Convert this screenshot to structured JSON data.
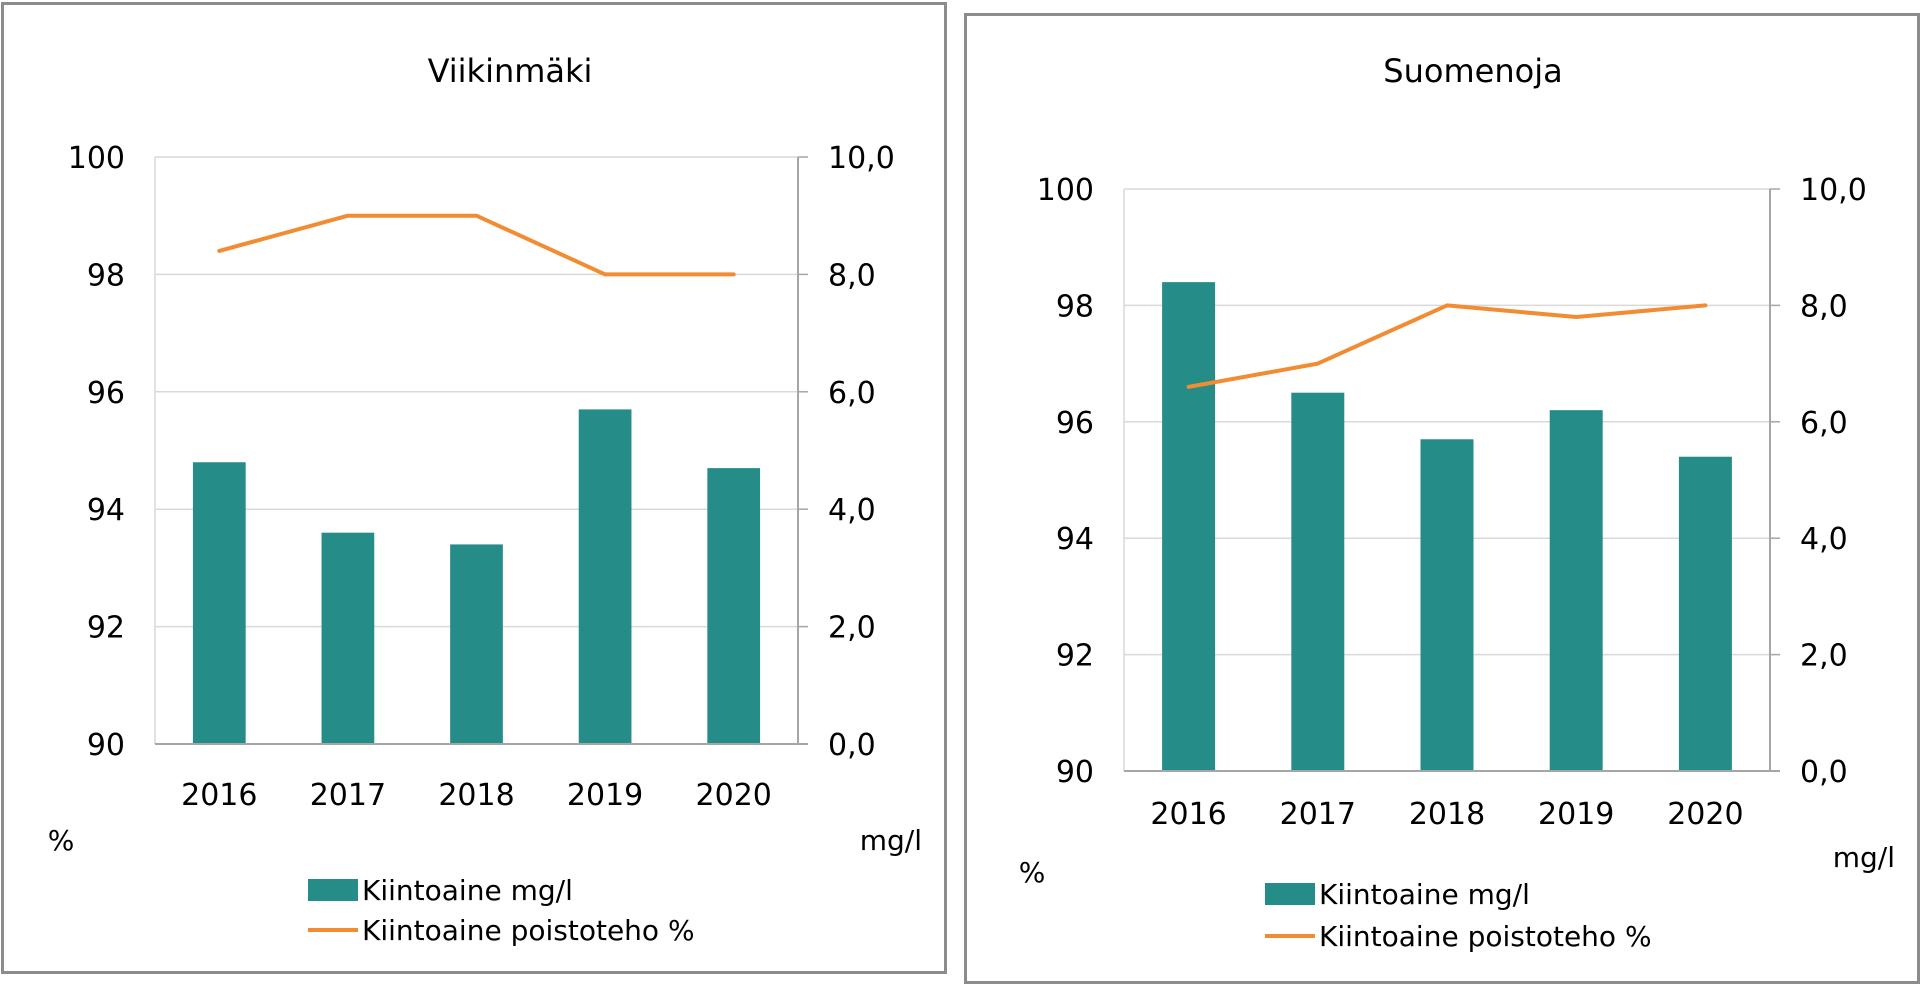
{
  "colors": {
    "bar": "#268C87",
    "line": "#F28C33",
    "grid": "#d9d9d9",
    "axis": "#a6a6a6",
    "frame": "#8c8c8c"
  },
  "chart_data": [
    {
      "type": "bar",
      "title": "Viikinmäki",
      "categories": [
        "2016",
        "2017",
        "2018",
        "2019",
        "2020"
      ],
      "series": [
        {
          "name": "Kiintoaine mg/l",
          "type": "bar",
          "axis": "right",
          "values": [
            4.8,
            3.6,
            3.4,
            5.7,
            4.7
          ]
        },
        {
          "name": "Kiintoaine poistoteho %",
          "type": "line",
          "axis": "left",
          "values": [
            98.4,
            99.0,
            99.0,
            98.0,
            98.0
          ]
        }
      ],
      "y_left": {
        "label": "%",
        "range": [
          90,
          100
        ],
        "ticks": [
          "90",
          "92",
          "94",
          "96",
          "98",
          "100"
        ]
      },
      "y_right": {
        "label": "mg/l",
        "range": [
          0,
          10
        ],
        "ticks": [
          "0,0",
          "2,0",
          "4,0",
          "6,0",
          "8,0",
          "10,0"
        ]
      },
      "grid": true,
      "legend": {
        "placement": "bottom",
        "entries": [
          "Kiintoaine mg/l",
          "Kiintoaine poistoteho %"
        ]
      }
    },
    {
      "type": "bar",
      "title": "Suomenoja",
      "categories": [
        "2016",
        "2017",
        "2018",
        "2019",
        "2020"
      ],
      "series": [
        {
          "name": "Kiintoaine mg/l",
          "type": "bar",
          "axis": "right",
          "values": [
            8.4,
            6.5,
            5.7,
            6.2,
            5.4
          ]
        },
        {
          "name": "Kiintoaine poistoteho %",
          "type": "line",
          "axis": "left",
          "values": [
            96.6,
            97.0,
            98.0,
            97.8,
            98.0
          ]
        }
      ],
      "y_left": {
        "label": "%",
        "range": [
          90,
          100
        ],
        "ticks": [
          "90",
          "92",
          "94",
          "96",
          "98",
          "100"
        ]
      },
      "y_right": {
        "label": "mg/l",
        "range": [
          0,
          10
        ],
        "ticks": [
          "0,0",
          "2,0",
          "4,0",
          "6,0",
          "8,0",
          "10,0"
        ]
      },
      "grid": true,
      "legend": {
        "placement": "bottom",
        "entries": [
          "Kiintoaine mg/l",
          "Kiintoaine poistoteho %"
        ]
      }
    }
  ]
}
